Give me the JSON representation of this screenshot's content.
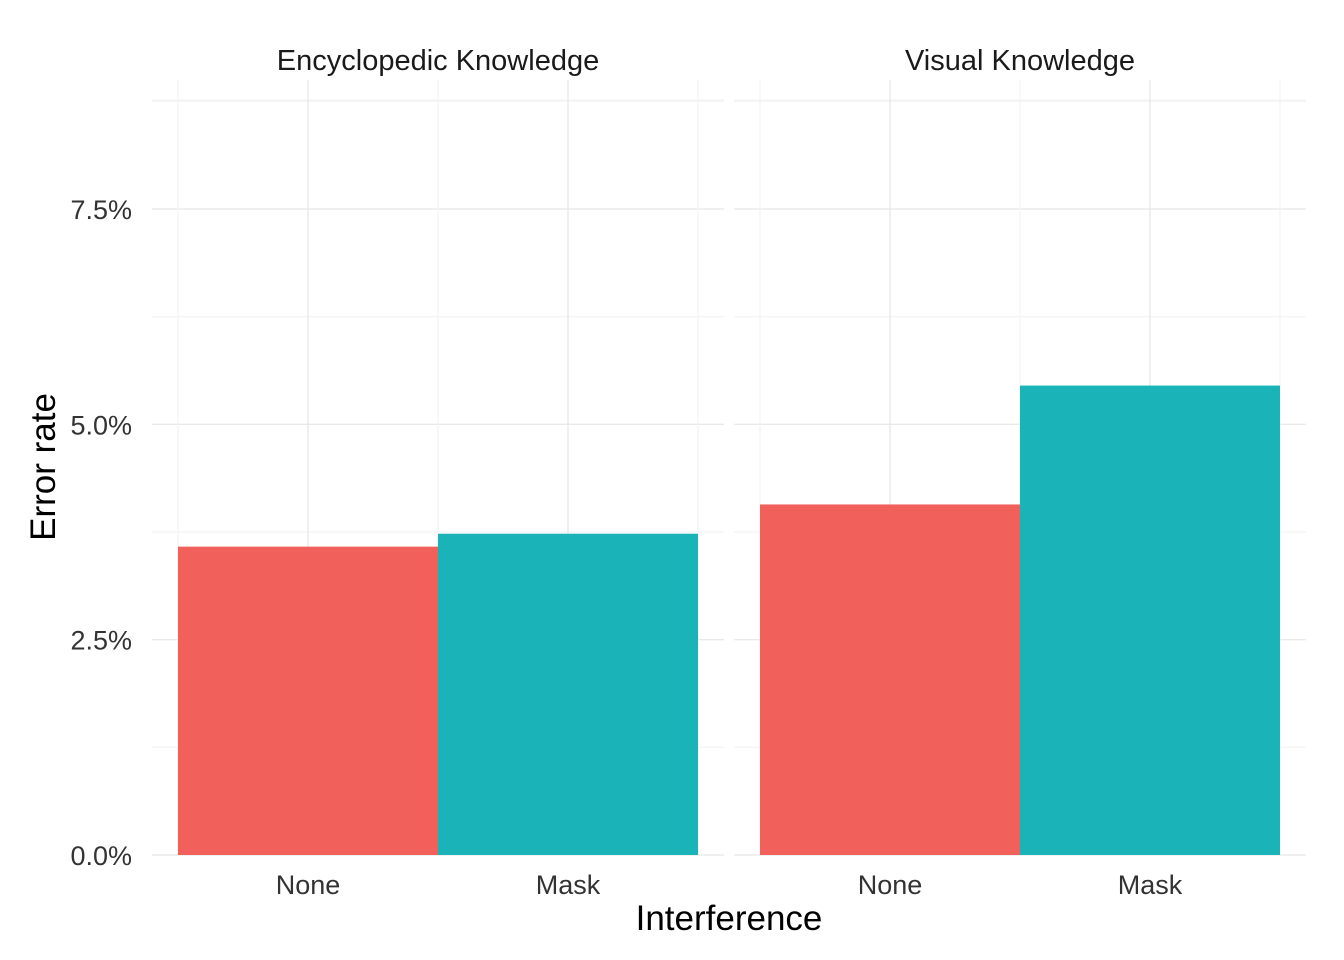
{
  "chart_data": {
    "type": "bar",
    "xlabel": "Interference",
    "ylabel": "Error rate",
    "ylim": [
      0,
      0.088
    ],
    "y_ticks": [
      0,
      0.025,
      0.05,
      0.075
    ],
    "y_tick_labels": [
      "0.0%",
      "2.5%",
      "5.0%",
      "7.5%"
    ],
    "categories": [
      "None",
      "Mask"
    ],
    "colors": {
      "None": "#F2605C",
      "Mask": "#1AB3B7"
    },
    "grid": true,
    "legend": "none",
    "facets": [
      {
        "title": "Encyclopedic Knowledge",
        "values": [
          0.0358,
          0.0373
        ]
      },
      {
        "title": "Visual Knowledge",
        "values": [
          0.0407,
          0.0545
        ]
      }
    ]
  }
}
